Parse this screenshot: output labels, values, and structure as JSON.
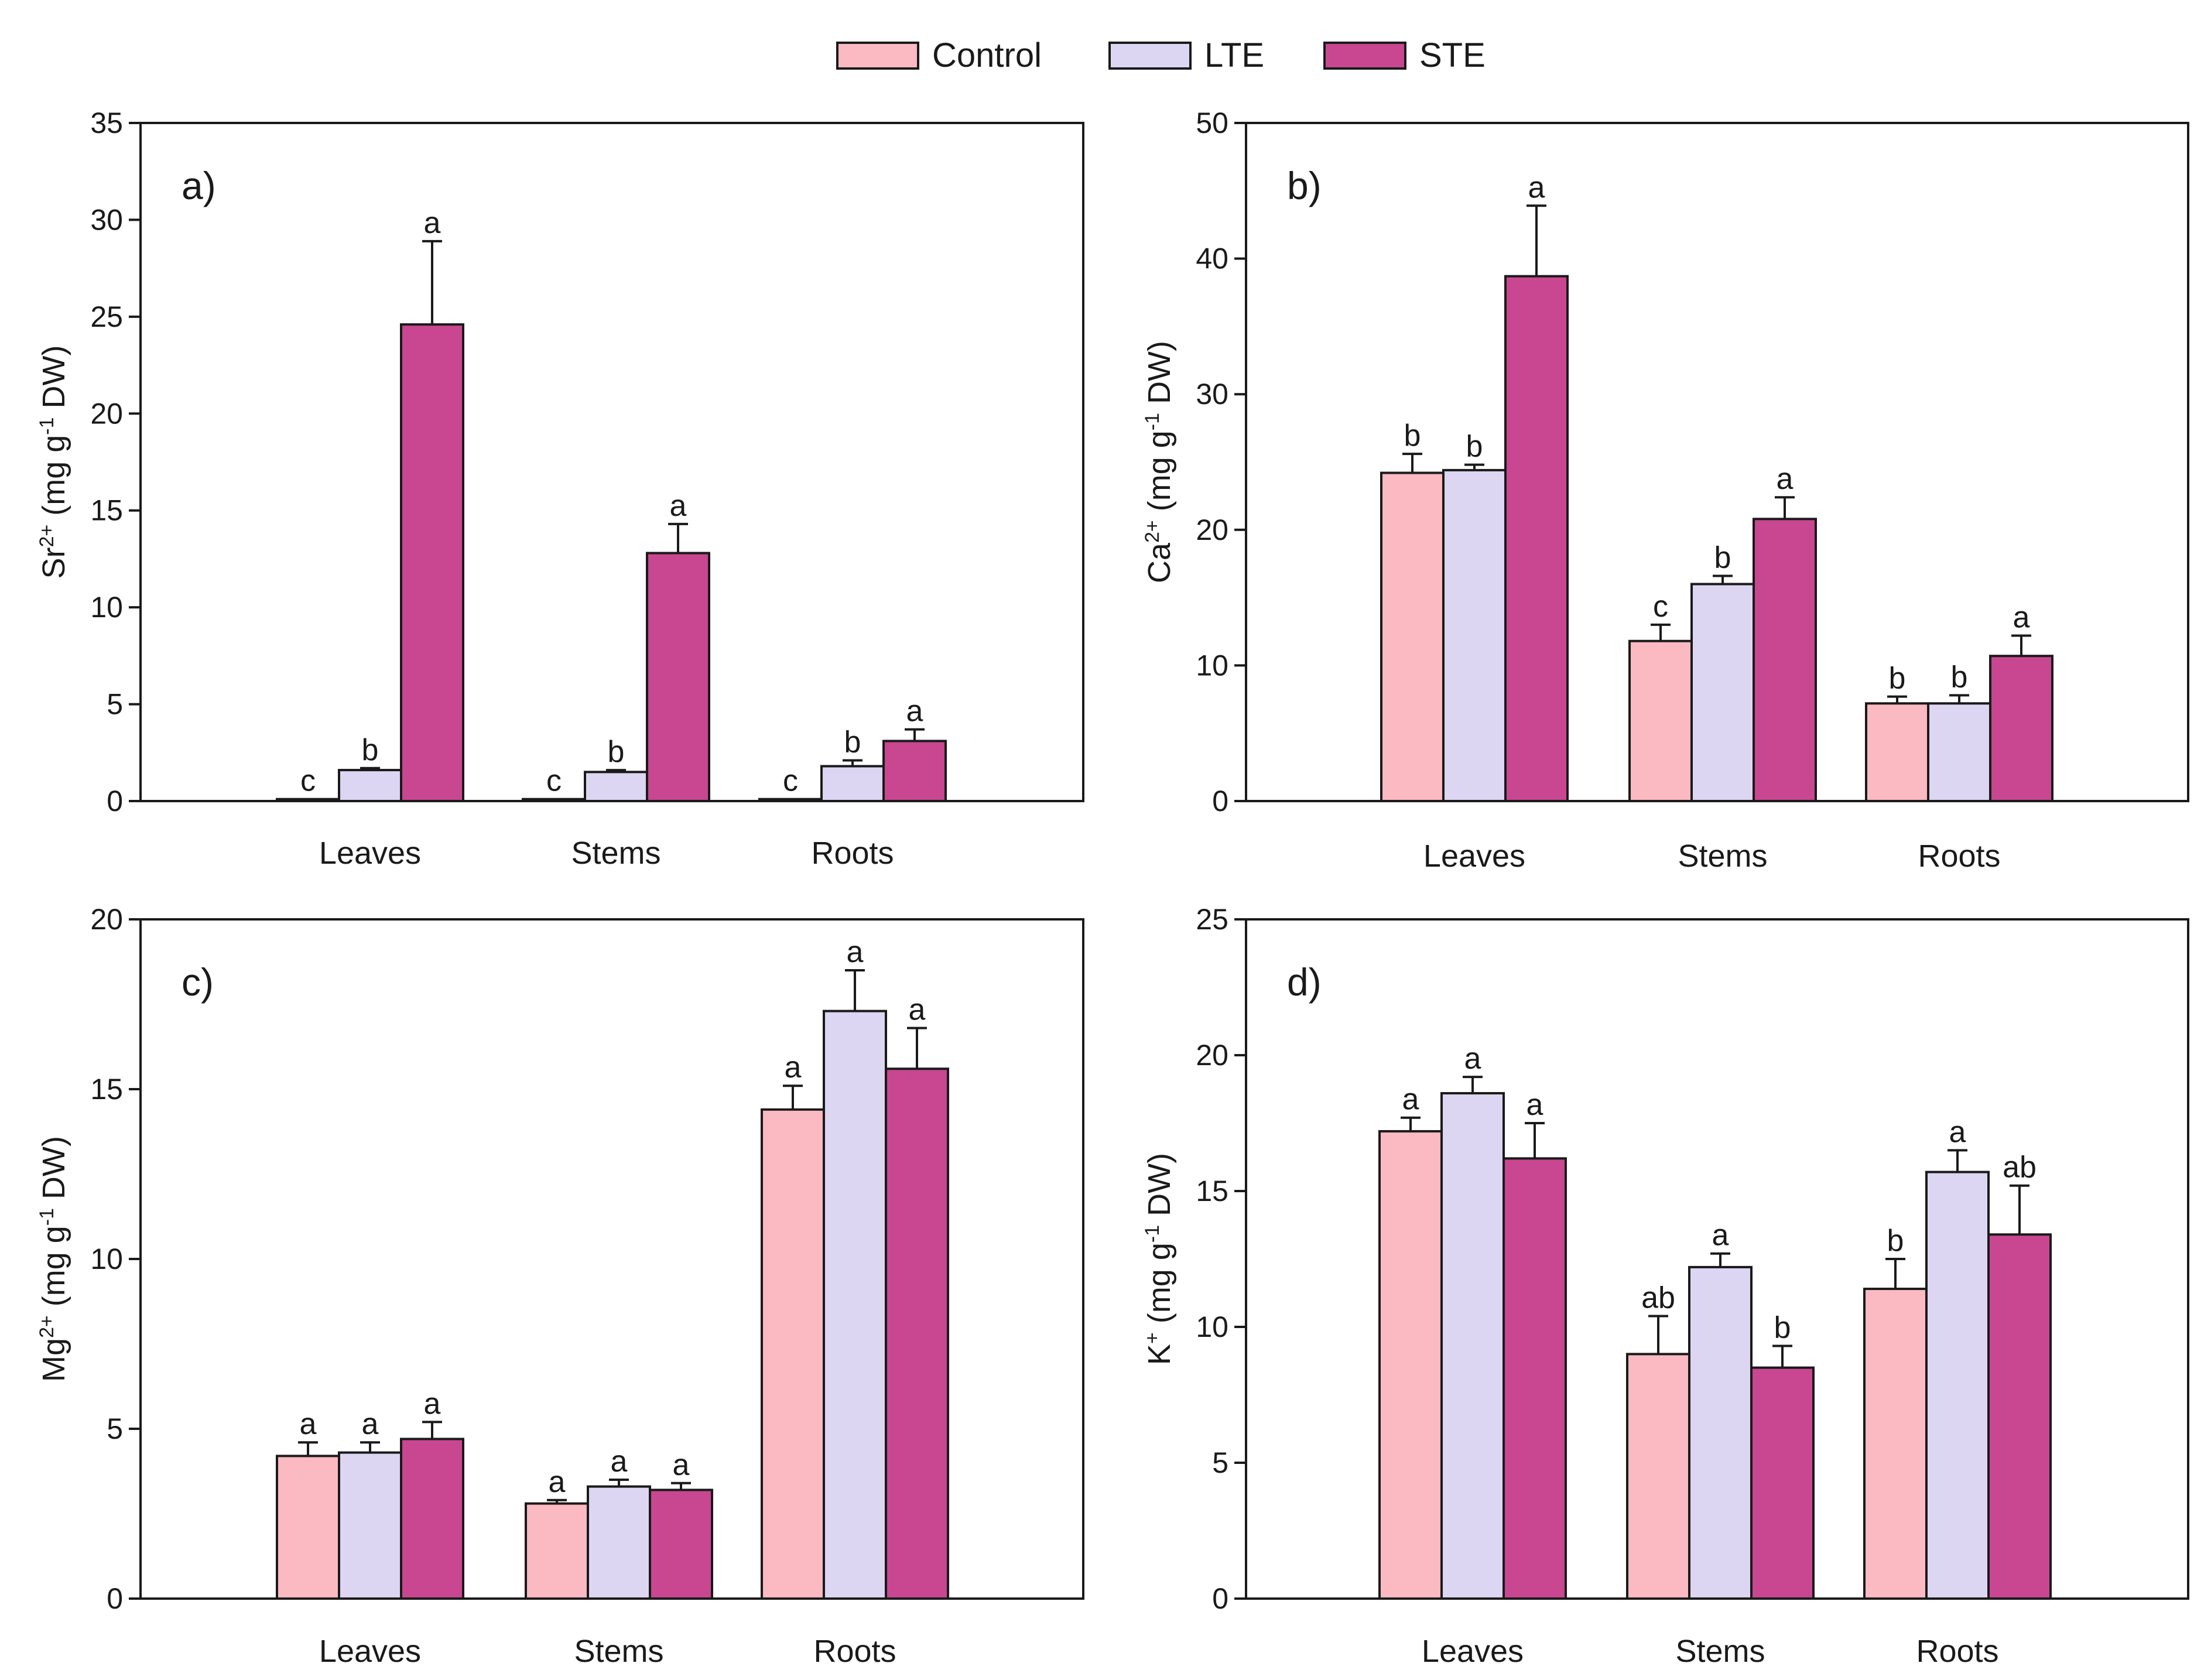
{
  "legend": [
    {
      "name": "Control",
      "color": "#fbb9c1"
    },
    {
      "name": "LTE",
      "color": "#dcd6f2"
    },
    {
      "name": "STE",
      "color": "#c84790"
    }
  ],
  "chart_data": [
    {
      "type": "bar",
      "panel": "a)",
      "ylabel": {
        "ion": "Sr",
        "charge": "2+",
        "unit_pre": " (mg g",
        "unit_exp": "-1",
        "unit_post": " DW)"
      },
      "ylim": [
        0,
        35
      ],
      "yticks": [
        0,
        5,
        10,
        15,
        20,
        25,
        30,
        35
      ],
      "categories": [
        "Leaves",
        "Stems",
        "Roots"
      ],
      "series": [
        {
          "name": "Control",
          "values": [
            0.1,
            0.1,
            0.1
          ],
          "errors": [
            0.0,
            0.0,
            0.0
          ],
          "letters": [
            "c",
            "c",
            "c"
          ]
        },
        {
          "name": "LTE",
          "values": [
            1.6,
            1.5,
            1.8
          ],
          "errors": [
            0.1,
            0.1,
            0.3
          ],
          "letters": [
            "b",
            "b",
            "b"
          ]
        },
        {
          "name": "STE",
          "values": [
            24.6,
            12.8,
            3.1
          ],
          "errors": [
            4.3,
            1.5,
            0.6
          ],
          "letters": [
            "a",
            "a",
            "a"
          ]
        }
      ]
    },
    {
      "type": "bar",
      "panel": "b)",
      "ylabel": {
        "ion": "Ca",
        "charge": "2+",
        "unit_pre": " (mg g",
        "unit_exp": "-1",
        "unit_post": " DW)"
      },
      "ylim": [
        0,
        50
      ],
      "yticks": [
        0,
        10,
        20,
        30,
        40,
        50
      ],
      "categories": [
        "Leaves",
        "Stems",
        "Roots"
      ],
      "series": [
        {
          "name": "Control",
          "values": [
            24.2,
            11.8,
            7.2
          ],
          "errors": [
            1.4,
            1.2,
            0.5
          ],
          "letters": [
            "b",
            "c",
            "b"
          ]
        },
        {
          "name": "LTE",
          "values": [
            24.4,
            16.0,
            7.2
          ],
          "errors": [
            0.4,
            0.6,
            0.6
          ],
          "letters": [
            "b",
            "b",
            "b"
          ]
        },
        {
          "name": "STE",
          "values": [
            38.7,
            20.8,
            10.7
          ],
          "errors": [
            5.2,
            1.6,
            1.5
          ],
          "letters": [
            "a",
            "a",
            "a"
          ]
        }
      ]
    },
    {
      "type": "bar",
      "panel": "c)",
      "ylabel": {
        "ion": "Mg",
        "charge": "2+",
        "unit_pre": " (mg g",
        "unit_exp": "-1",
        "unit_post": " DW)"
      },
      "ylim": [
        0,
        20
      ],
      "yticks": [
        0,
        5,
        10,
        15,
        20
      ],
      "categories": [
        "Leaves",
        "Stems",
        "Roots"
      ],
      "series": [
        {
          "name": "Control",
          "values": [
            4.2,
            2.8,
            14.4
          ],
          "errors": [
            0.4,
            0.1,
            0.7
          ],
          "letters": [
            "a",
            "a",
            "a"
          ]
        },
        {
          "name": "LTE",
          "values": [
            4.3,
            3.3,
            17.3
          ],
          "errors": [
            0.3,
            0.2,
            1.2
          ],
          "letters": [
            "a",
            "a",
            "a"
          ]
        },
        {
          "name": "STE",
          "values": [
            4.7,
            3.2,
            15.6
          ],
          "errors": [
            0.5,
            0.2,
            1.2
          ],
          "letters": [
            "a",
            "a",
            "a"
          ]
        }
      ]
    },
    {
      "type": "bar",
      "panel": "d)",
      "ylabel": {
        "ion": "K",
        "charge": "+",
        "unit_pre": " (mg g",
        "unit_exp": "-1",
        "unit_post": " DW)"
      },
      "ylim": [
        0,
        25
      ],
      "yticks": [
        0,
        5,
        10,
        15,
        20,
        25
      ],
      "categories": [
        "Leaves",
        "Stems",
        "Roots"
      ],
      "series": [
        {
          "name": "Control",
          "values": [
            17.2,
            9.0,
            11.4
          ],
          "errors": [
            0.5,
            1.4,
            1.1
          ],
          "letters": [
            "a",
            "ab",
            "b"
          ]
        },
        {
          "name": "LTE",
          "values": [
            18.6,
            12.2,
            15.7
          ],
          "errors": [
            0.6,
            0.5,
            0.8
          ],
          "letters": [
            "a",
            "a",
            "a"
          ]
        },
        {
          "name": "STE",
          "values": [
            16.2,
            8.5,
            13.4
          ],
          "errors": [
            1.3,
            0.8,
            1.8
          ],
          "letters": [
            "a",
            "b",
            "ab"
          ]
        }
      ]
    }
  ]
}
